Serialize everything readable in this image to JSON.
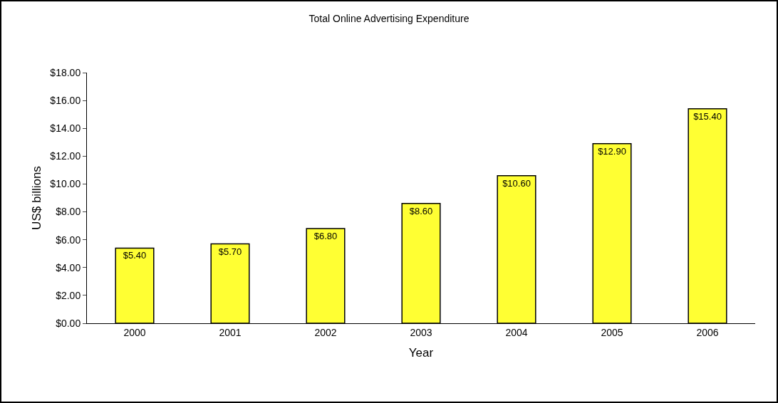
{
  "chart_data": {
    "type": "bar",
    "title": "Total Online Advertising Expenditure",
    "xlabel": "Year",
    "ylabel": "US$ billions",
    "categories": [
      "2000",
      "2001",
      "2002",
      "2003",
      "2004",
      "2005",
      "2006"
    ],
    "values": [
      5.4,
      5.7,
      6.8,
      8.6,
      10.6,
      12.9,
      15.4
    ],
    "value_labels": [
      "$5.40",
      "$5.70",
      "$6.80",
      "$8.60",
      "$10.60",
      "$12.90",
      "$15.40"
    ],
    "color": "#ffff33",
    "ylim": [
      0,
      18
    ],
    "yticks": [
      {
        "value": 0,
        "label": "$0.00"
      },
      {
        "value": 2,
        "label": "$2.00"
      },
      {
        "value": 4,
        "label": "$4.00"
      },
      {
        "value": 6,
        "label": "$6.00"
      },
      {
        "value": 8,
        "label": "$8.00"
      },
      {
        "value": 10,
        "label": "$10.00"
      },
      {
        "value": 12,
        "label": "$12.00"
      },
      {
        "value": 14,
        "label": "$14.00"
      },
      {
        "value": 16,
        "label": "$16.00"
      },
      {
        "value": 18,
        "label": "$18.00"
      }
    ],
    "grid": false
  }
}
